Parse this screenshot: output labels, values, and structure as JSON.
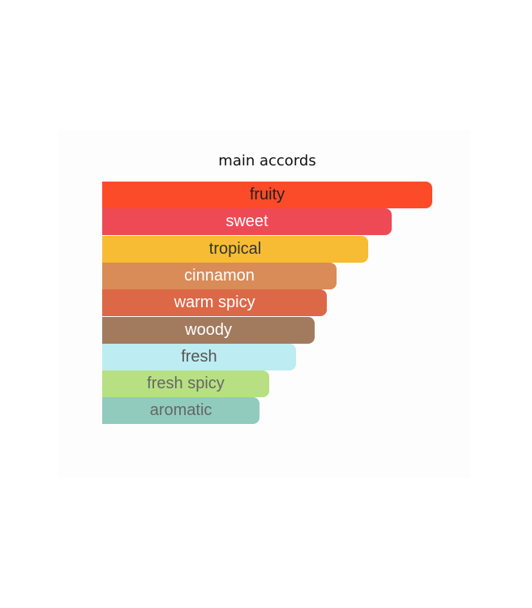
{
  "chart_data": {
    "type": "bar",
    "orientation": "horizontal",
    "title": "main accords",
    "categories": [
      "fruity",
      "sweet",
      "tropical",
      "cinnamon",
      "warm spicy",
      "woody",
      "fresh",
      "fresh spicy",
      "aromatic"
    ],
    "values": [
      100,
      87.7,
      80.6,
      71.0,
      68.1,
      64.4,
      58.7,
      50.6,
      47.7
    ],
    "value_unit": "percent of max",
    "xlim": [
      0,
      100
    ],
    "grid": false,
    "legend": "none",
    "colors": [
      "#fc4b29",
      "#ee4a55",
      "#f7bc33",
      "#d98b58",
      "#dc6847",
      "#a27b5f",
      "#bdecf2",
      "#b7e082",
      "#91cbbd"
    ],
    "text_colors": [
      "#222222",
      "#ffffff",
      "#333333",
      "#ffffff",
      "#ffffff",
      "#ffffff",
      "#555555",
      "#666666",
      "#666666"
    ]
  }
}
